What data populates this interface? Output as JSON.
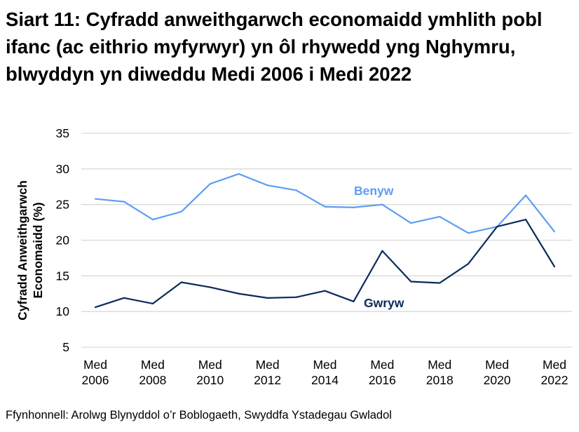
{
  "chart_data": {
    "type": "line",
    "title": "Siart 11: Cyfradd anweithgarwch economaidd ymhlith pobl ifanc (ac eithrio myfyrwyr) yn ôl rhywedd yng Nghymru, blwyddyn yn diweddu Medi 2006 i Medi 2022",
    "ylabel_line1": "Cyfradd Anweithgarwch",
    "ylabel_line2": "Economaidd (%)",
    "xlabel": "",
    "ylim": [
      5,
      35
    ],
    "yticks": [
      5,
      10,
      15,
      20,
      25,
      30,
      35
    ],
    "grid": true,
    "x": [
      2006,
      2007,
      2008,
      2009,
      2010,
      2011,
      2012,
      2013,
      2014,
      2015,
      2016,
      2017,
      2018,
      2019,
      2020,
      2021,
      2022
    ],
    "xtick_labels": [
      {
        "year": 2006,
        "line1": "Med",
        "line2": "2006"
      },
      {
        "year": 2008,
        "line1": "Med",
        "line2": "2008"
      },
      {
        "year": 2010,
        "line1": "Med",
        "line2": "2010"
      },
      {
        "year": 2012,
        "line1": "Med",
        "line2": "2012"
      },
      {
        "year": 2014,
        "line1": "Med",
        "line2": "2014"
      },
      {
        "year": 2016,
        "line1": "Med",
        "line2": "2016"
      },
      {
        "year": 2018,
        "line1": "Med",
        "line2": "2018"
      },
      {
        "year": 2020,
        "line1": "Med",
        "line2": "2020"
      },
      {
        "year": 2022,
        "line1": "Med",
        "line2": "2022"
      }
    ],
    "series": [
      {
        "name": "Benyw",
        "color": "#5b9ef5",
        "values": [
          25.8,
          25.4,
          22.9,
          24.0,
          27.9,
          29.3,
          27.7,
          27.0,
          24.7,
          24.6,
          25.0,
          22.4,
          23.3,
          21.0,
          21.9,
          26.3,
          21.2
        ]
      },
      {
        "name": "Gwryw",
        "color": "#0a2b5c",
        "values": [
          10.6,
          11.9,
          11.1,
          14.1,
          13.4,
          12.5,
          11.9,
          12.0,
          12.9,
          11.4,
          18.5,
          14.2,
          14.0,
          16.7,
          21.9,
          22.9,
          16.3
        ]
      }
    ]
  },
  "source": "Ffynhonnell: Arolwg Blynyddol o’r Boblogaeth, Swyddfa Ystadegau Gwladol"
}
